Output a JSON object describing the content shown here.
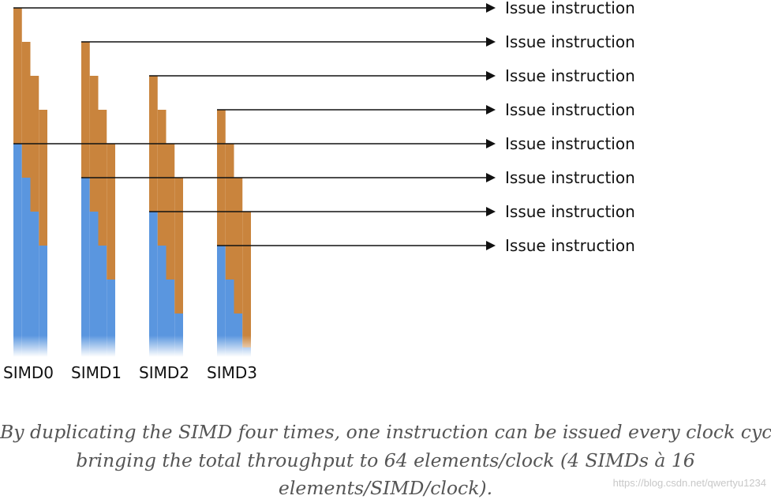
{
  "diagram": {
    "issue_label": "Issue instruction",
    "simd_units": [
      "SIMD0",
      "SIMD1",
      "SIMD2",
      "SIMD3"
    ],
    "lanes_per_simd": 4,
    "instructions_shown": 8,
    "colors": {
      "previous_instruction": "#C9843D",
      "current_instruction": "#5A96DF",
      "lines": "#111111"
    }
  },
  "caption": {
    "line1": "By duplicating the SIMD four times, one instruction can be issued every clock cycle,",
    "line2": "bringing the total throughput to 64 elements/clock (4 SIMDs à 16",
    "line3": "elements/SIMD/clock)."
  },
  "watermark": "https://blog.csdn.net/qwertyu1234"
}
